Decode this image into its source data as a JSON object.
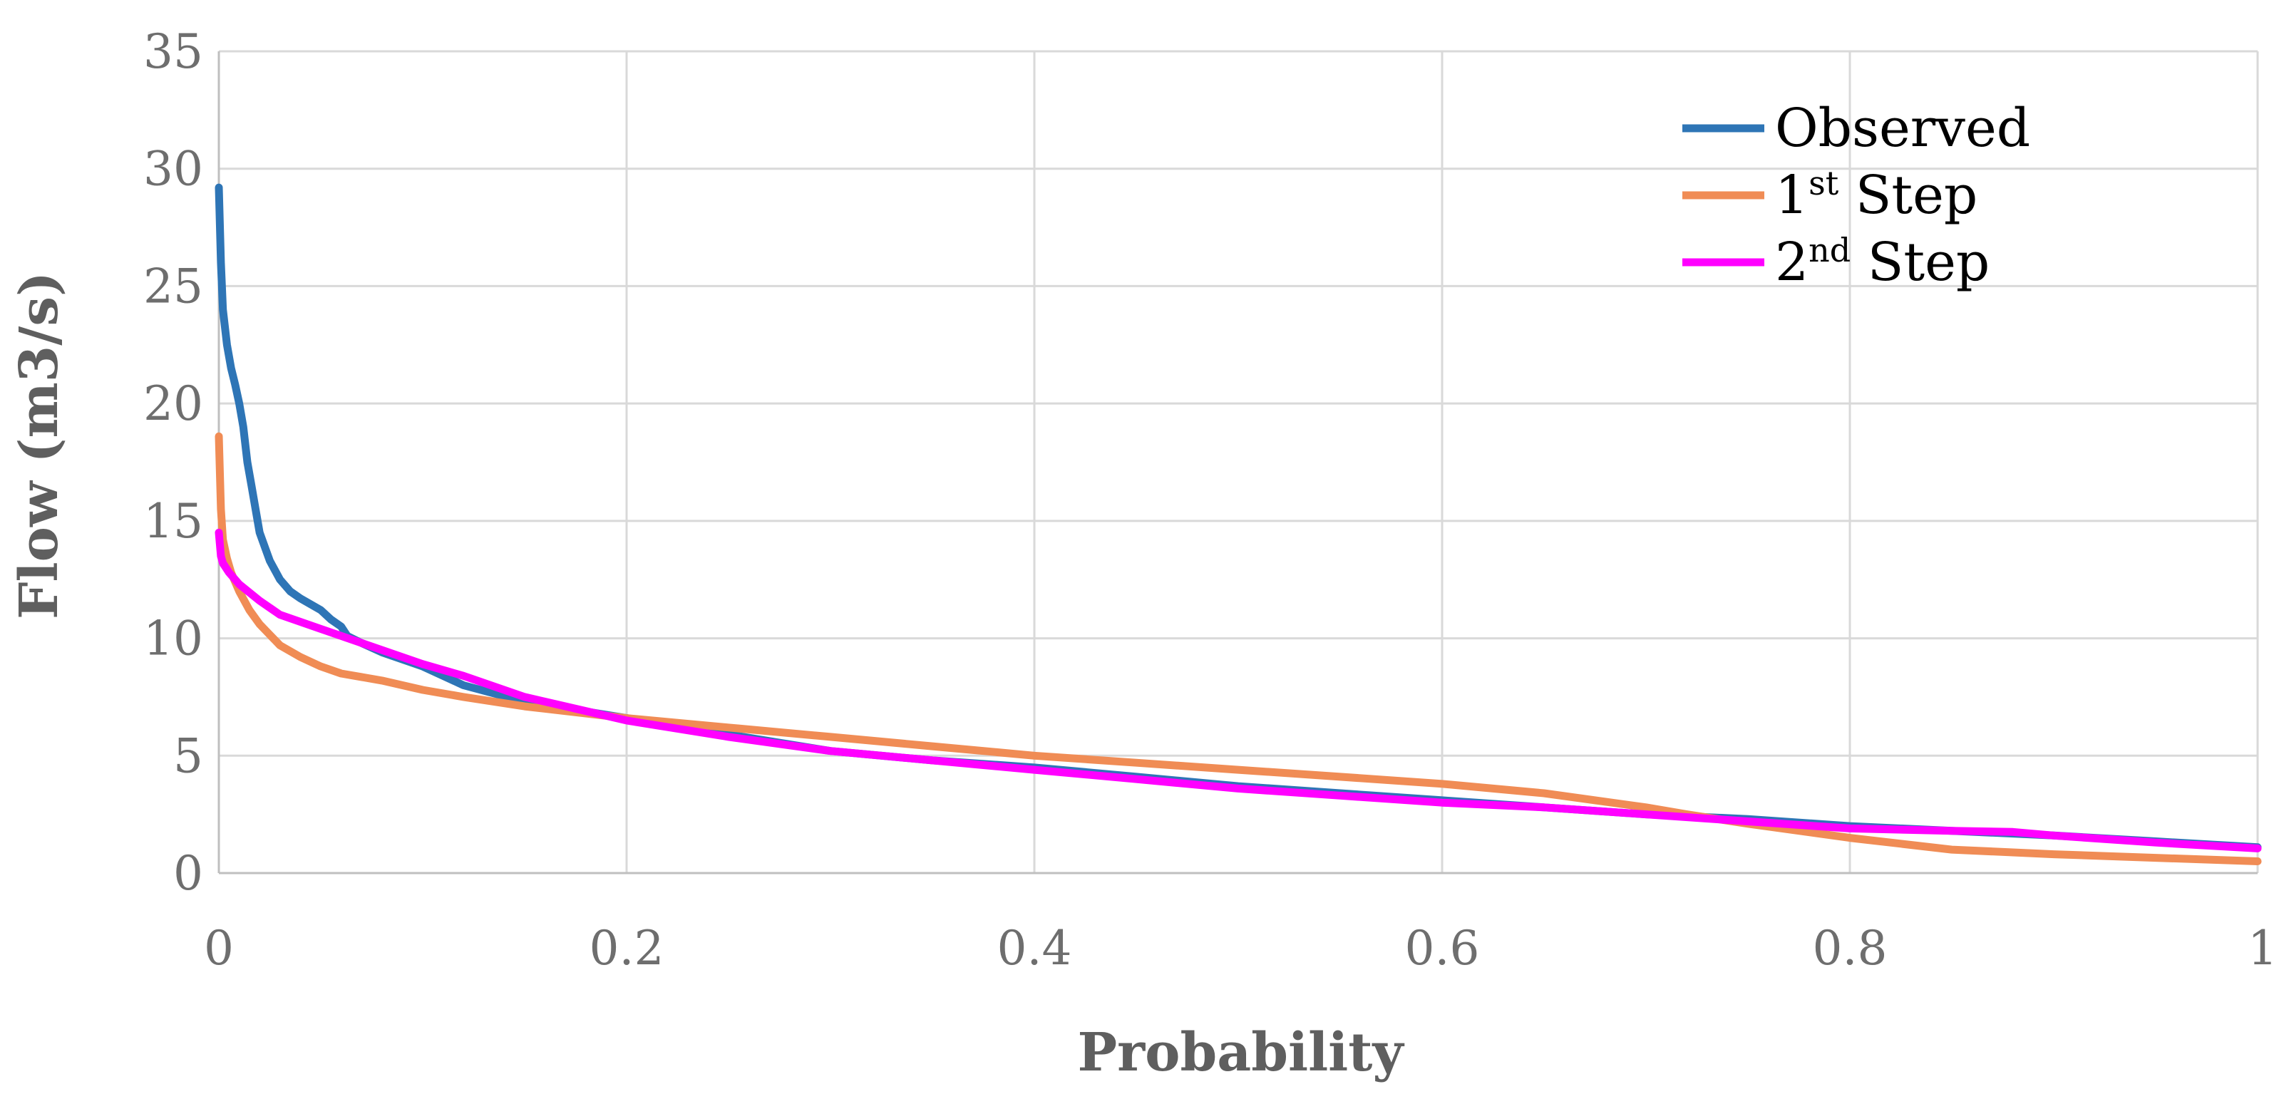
{
  "chart_data": {
    "type": "line",
    "title": "",
    "xlabel": "Probability",
    "ylabel": "Flow (m3/s)",
    "xlim": [
      0,
      1
    ],
    "ylim": [
      0,
      35
    ],
    "xticks": [
      "0",
      "0.2",
      "0.4",
      "0.6",
      "0.8",
      "1"
    ],
    "yticks": [
      "0",
      "5",
      "10",
      "15",
      "20",
      "25",
      "30",
      "35"
    ],
    "grid": true,
    "legend_position": "top-right",
    "legend": [
      {
        "prefix": "Observed",
        "sup": "",
        "suffix": "",
        "color": "#2e75b6"
      },
      {
        "prefix": "1",
        "sup": "st",
        "suffix": " Step",
        "color": "#f08c55"
      },
      {
        "prefix": "2",
        "sup": "nd",
        "suffix": " Step",
        "color": "#ff00ff"
      }
    ],
    "series": [
      {
        "name": "Observed",
        "color": "#2e75b6",
        "x": [
          0.0,
          0.001,
          0.002,
          0.004,
          0.006,
          0.008,
          0.01,
          0.012,
          0.014,
          0.016,
          0.018,
          0.02,
          0.025,
          0.03,
          0.035,
          0.04,
          0.05,
          0.055,
          0.06,
          0.063,
          0.07,
          0.08,
          0.1,
          0.12,
          0.15,
          0.2,
          0.25,
          0.3,
          0.35,
          0.4,
          0.45,
          0.5,
          0.55,
          0.6,
          0.65,
          0.7,
          0.75,
          0.8,
          0.85,
          0.9,
          0.95,
          1.0
        ],
        "y": [
          29.2,
          26.0,
          24.0,
          22.5,
          21.5,
          20.8,
          20.0,
          19.0,
          17.5,
          16.5,
          15.5,
          14.5,
          13.3,
          12.5,
          12.0,
          11.7,
          11.2,
          10.8,
          10.5,
          10.1,
          9.8,
          9.4,
          8.8,
          8.0,
          7.3,
          6.6,
          5.9,
          5.2,
          4.8,
          4.5,
          4.1,
          3.7,
          3.4,
          3.1,
          2.8,
          2.5,
          2.3,
          2.0,
          1.8,
          1.6,
          1.35,
          1.1
        ]
      },
      {
        "name": "1st Step",
        "color": "#f08c55",
        "x": [
          0.0,
          0.001,
          0.002,
          0.004,
          0.006,
          0.01,
          0.015,
          0.02,
          0.03,
          0.04,
          0.05,
          0.06,
          0.08,
          0.1,
          0.12,
          0.15,
          0.2,
          0.25,
          0.3,
          0.35,
          0.4,
          0.45,
          0.5,
          0.55,
          0.6,
          0.65,
          0.7,
          0.72,
          0.75,
          0.8,
          0.85,
          0.9,
          0.95,
          1.0
        ],
        "y": [
          18.6,
          15.5,
          14.2,
          13.4,
          12.8,
          12.0,
          11.2,
          10.6,
          9.7,
          9.2,
          8.8,
          8.5,
          8.2,
          7.8,
          7.5,
          7.1,
          6.6,
          6.2,
          5.8,
          5.4,
          5.0,
          4.7,
          4.4,
          4.1,
          3.8,
          3.4,
          2.8,
          2.5,
          2.1,
          1.5,
          1.0,
          0.8,
          0.65,
          0.5
        ]
      },
      {
        "name": "2nd Step",
        "color": "#ff00ff",
        "x": [
          0.0,
          0.001,
          0.002,
          0.005,
          0.01,
          0.02,
          0.03,
          0.05,
          0.07,
          0.1,
          0.12,
          0.15,
          0.2,
          0.25,
          0.3,
          0.35,
          0.4,
          0.45,
          0.5,
          0.55,
          0.6,
          0.65,
          0.7,
          0.75,
          0.8,
          0.85,
          0.88,
          0.9,
          0.95,
          1.0
        ],
        "y": [
          14.5,
          13.5,
          13.2,
          12.8,
          12.3,
          11.6,
          11.0,
          10.4,
          9.8,
          8.9,
          8.4,
          7.5,
          6.5,
          5.8,
          5.2,
          4.8,
          4.4,
          4.0,
          3.6,
          3.3,
          3.0,
          2.8,
          2.5,
          2.2,
          1.9,
          1.8,
          1.75,
          1.6,
          1.3,
          1.05
        ]
      }
    ]
  }
}
